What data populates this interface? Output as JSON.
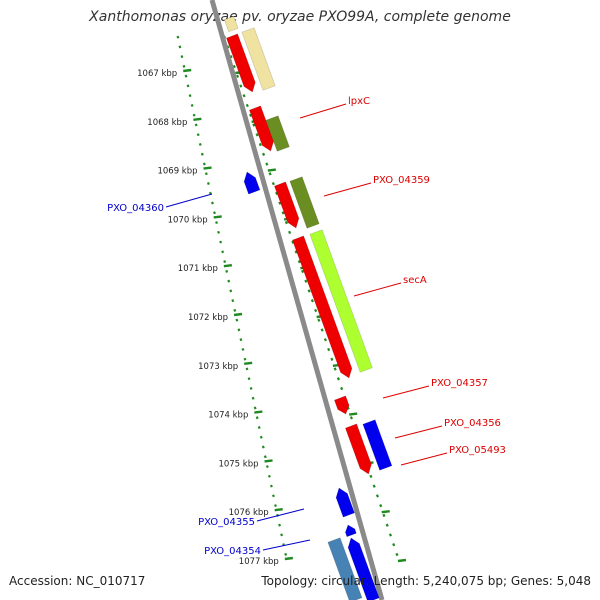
{
  "title": "Xanthomonas oryzae pv. oryzae PXO99A, complete genome",
  "accession": "Accession: NC_010717",
  "summary": "Topology: circular; Length: 5,240,075 bp; Genes: 5,048",
  "colors": {
    "backbone": "#8a8a8a",
    "tick": "#1f8a1f",
    "forward_label": "#dd0000",
    "reverse_label": "#0000cc",
    "red_gene": "#ee0000",
    "blue_gene": "#0000ee",
    "olive_feature": "#6b8e23",
    "khaki_feature": "#f0e2a0",
    "lime_feature": "#adff2f",
    "steel_feature": "#4682b4"
  },
  "scale": {
    "unit": "kbp",
    "labels": [
      "1067 kbp",
      "1068 kbp",
      "1069 kbp",
      "1070 kbp",
      "1071 kbp",
      "1072 kbp",
      "1073 kbp",
      "1074 kbp",
      "1075 kbp",
      "1076 kbp",
      "1077 kbp"
    ]
  },
  "gene_labels": [
    {
      "text": "lpxC",
      "strand": "forward"
    },
    {
      "text": "PXO_04359",
      "strand": "forward"
    },
    {
      "text": "secA",
      "strand": "forward"
    },
    {
      "text": "PXO_04357",
      "strand": "forward"
    },
    {
      "text": "PXO_04356",
      "strand": "forward"
    },
    {
      "text": "PXO_05493",
      "strand": "forward"
    },
    {
      "text": "PXO_04360",
      "strand": "reverse"
    },
    {
      "text": "PXO_04355",
      "strand": "reverse"
    },
    {
      "text": "PXO_04354",
      "strand": "reverse"
    }
  ]
}
